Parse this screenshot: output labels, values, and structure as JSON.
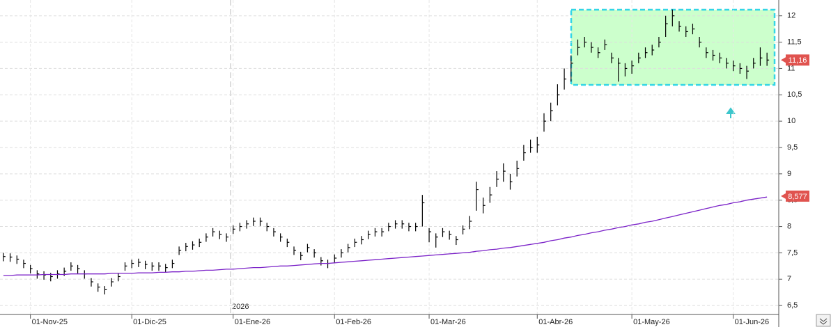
{
  "chart_data": {
    "type": "hlc",
    "year_label": "2026",
    "categories": [
      null,
      null,
      null,
      null,
      "01-Nov-25",
      null,
      null,
      null,
      null,
      null,
      null,
      null,
      null,
      null,
      null,
      null,
      null,
      null,
      null,
      "01-Dic-25",
      null,
      null,
      null,
      null,
      null,
      null,
      null,
      null,
      null,
      null,
      null,
      null,
      null,
      null,
      "01-Ene-26",
      null,
      null,
      null,
      null,
      null,
      null,
      null,
      null,
      null,
      null,
      null,
      null,
      null,
      null,
      "01-Feb-26",
      null,
      null,
      null,
      null,
      null,
      null,
      null,
      null,
      null,
      null,
      null,
      null,
      null,
      "01-Mar-26",
      null,
      null,
      null,
      null,
      null,
      null,
      null,
      null,
      null,
      null,
      null,
      null,
      null,
      null,
      null,
      "01-Abr-26",
      null,
      null,
      null,
      null,
      null,
      null,
      null,
      null,
      null,
      null,
      null,
      null,
      null,
      "01-May-26",
      null,
      null,
      null,
      null,
      null,
      null,
      null,
      null,
      null,
      null,
      null,
      null,
      null,
      null,
      "01-Jun-26",
      null,
      null,
      null,
      null,
      null
    ],
    "high": [
      7.5,
      7.49,
      7.45,
      7.37,
      7.27,
      7.17,
      7.15,
      7.12,
      7.17,
      7.22,
      7.32,
      7.27,
      7.17,
      7.02,
      6.92,
      6.87,
      7.02,
      7.12,
      7.32,
      7.37,
      7.39,
      7.35,
      7.32,
      7.32,
      7.29,
      7.37,
      7.62,
      7.69,
      7.72,
      7.77,
      7.87,
      7.97,
      7.92,
      7.87,
      8.02,
      8.07,
      8.12,
      8.17,
      8.17,
      8.07,
      7.97,
      7.87,
      7.77,
      7.62,
      7.52,
      7.67,
      7.57,
      7.42,
      7.37,
      7.47,
      7.57,
      7.67,
      7.77,
      7.82,
      7.92,
      7.97,
      7.97,
      8.07,
      8.12,
      8.12,
      8.07,
      8.07,
      8.6,
      7.97,
      7.87,
      7.97,
      7.92,
      7.82,
      8.02,
      8.2,
      8.85,
      8.55,
      8.75,
      9.05,
      9.2,
      9.0,
      9.25,
      9.55,
      9.65,
      9.7,
      10.15,
      10.35,
      10.7,
      11.0,
      11.25,
      11.55,
      11.6,
      11.5,
      11.4,
      11.55,
      11.3,
      11.2,
      11.1,
      11.15,
      11.3,
      11.4,
      11.45,
      11.6,
      12.0,
      12.12,
      11.9,
      11.8,
      11.85,
      11.6,
      11.4,
      11.35,
      11.3,
      11.2,
      11.15,
      11.1,
      11.05,
      11.2,
      11.4,
      11.3
    ],
    "low": [
      7.34,
      7.33,
      7.29,
      7.21,
      7.11,
      7.01,
      6.99,
      6.96,
      7.01,
      7.06,
      7.16,
      7.11,
      7.01,
      6.86,
      6.76,
      6.71,
      6.86,
      6.96,
      7.16,
      7.21,
      7.23,
      7.19,
      7.16,
      7.16,
      7.13,
      7.21,
      7.46,
      7.53,
      7.56,
      7.61,
      7.71,
      7.81,
      7.76,
      7.71,
      7.86,
      7.91,
      7.96,
      8.01,
      8.01,
      7.91,
      7.81,
      7.71,
      7.61,
      7.46,
      7.36,
      7.51,
      7.41,
      7.26,
      7.21,
      7.31,
      7.41,
      7.51,
      7.61,
      7.66,
      7.76,
      7.81,
      7.81,
      7.91,
      7.96,
      7.96,
      7.91,
      7.91,
      8.0,
      7.7,
      7.6,
      7.8,
      7.75,
      7.65,
      7.85,
      7.95,
      8.3,
      8.25,
      8.45,
      8.75,
      8.85,
      8.7,
      8.95,
      9.25,
      9.4,
      9.4,
      9.8,
      10.0,
      10.3,
      10.6,
      10.75,
      11.25,
      11.4,
      11.3,
      11.2,
      11.35,
      11.1,
      10.75,
      10.85,
      10.9,
      11.1,
      11.2,
      11.25,
      11.4,
      11.6,
      11.8,
      11.7,
      11.6,
      11.65,
      11.4,
      11.2,
      11.15,
      11.1,
      11.0,
      10.95,
      10.9,
      10.8,
      11.0,
      11.05,
      11.05
    ],
    "close": [
      7.43,
      7.42,
      7.38,
      7.3,
      7.2,
      7.1,
      7.08,
      7.05,
      7.1,
      7.15,
      7.25,
      7.2,
      7.1,
      6.95,
      6.85,
      6.8,
      6.95,
      7.05,
      7.25,
      7.3,
      7.32,
      7.28,
      7.25,
      7.25,
      7.22,
      7.3,
      7.55,
      7.62,
      7.65,
      7.7,
      7.8,
      7.9,
      7.85,
      7.8,
      7.95,
      8.0,
      8.05,
      8.1,
      8.1,
      8.0,
      7.9,
      7.8,
      7.7,
      7.55,
      7.45,
      7.6,
      7.5,
      7.35,
      7.3,
      7.4,
      7.5,
      7.6,
      7.7,
      7.75,
      7.85,
      7.9,
      7.9,
      8.0,
      8.05,
      8.05,
      8.0,
      8.0,
      8.45,
      7.9,
      7.8,
      7.9,
      7.85,
      7.75,
      7.95,
      8.1,
      8.7,
      8.4,
      8.6,
      8.9,
      9.05,
      8.85,
      9.1,
      9.4,
      9.5,
      9.55,
      10.0,
      10.2,
      10.5,
      10.8,
      11.1,
      11.4,
      11.5,
      11.4,
      11.3,
      11.45,
      11.2,
      11.1,
      11.0,
      11.05,
      11.2,
      11.3,
      11.35,
      11.5,
      11.85,
      12.0,
      11.8,
      11.7,
      11.75,
      11.5,
      11.3,
      11.25,
      11.2,
      11.1,
      11.05,
      11.0,
      10.95,
      11.1,
      11.2,
      11.16
    ],
    "color": "#000000",
    "moving_average": {
      "color": "#7b22c8",
      "values": [
        7.07,
        7.07,
        7.08,
        7.08,
        7.08,
        7.08,
        7.09,
        7.09,
        7.09,
        7.09,
        7.1,
        7.1,
        7.1,
        7.1,
        7.1,
        7.1,
        7.11,
        7.11,
        7.11,
        7.11,
        7.12,
        7.12,
        7.12,
        7.13,
        7.13,
        7.14,
        7.14,
        7.15,
        7.15,
        7.16,
        7.17,
        7.17,
        7.18,
        7.19,
        7.19,
        7.2,
        7.21,
        7.22,
        7.22,
        7.23,
        7.24,
        7.25,
        7.25,
        7.26,
        7.27,
        7.28,
        7.29,
        7.3,
        7.3,
        7.31,
        7.32,
        7.33,
        7.34,
        7.35,
        7.36,
        7.37,
        7.38,
        7.39,
        7.4,
        7.41,
        7.42,
        7.43,
        7.44,
        7.45,
        7.46,
        7.47,
        7.48,
        7.49,
        7.5,
        7.51,
        7.53,
        7.54,
        7.56,
        7.57,
        7.59,
        7.6,
        7.62,
        7.64,
        7.66,
        7.68,
        7.7,
        7.73,
        7.75,
        7.78,
        7.8,
        7.83,
        7.85,
        7.88,
        7.9,
        7.93,
        7.95,
        7.98,
        8.0,
        8.03,
        8.05,
        8.08,
        8.1,
        8.13,
        8.16,
        8.19,
        8.22,
        8.25,
        8.28,
        8.31,
        8.34,
        8.37,
        8.4,
        8.42,
        8.45,
        8.47,
        8.5,
        8.52,
        8.54,
        8.56
      ]
    },
    "price_labels": [
      {
        "value": 11.16,
        "label": "11,16",
        "color": "#e0534f"
      },
      {
        "value": 8.577,
        "label": "8,577",
        "color": "#e0534f"
      }
    ],
    "ylim": [
      6.33,
      12.3
    ],
    "yticks": [
      {
        "value": 6.5,
        "label": "6,5"
      },
      7,
      {
        "value": 7.5,
        "label": "7,5"
      },
      8,
      {
        "value": 8.5,
        "label": "8,5"
      },
      9,
      {
        "value": 9.5,
        "label": "9,5"
      },
      10,
      {
        "value": 10.5,
        "label": "10,5"
      },
      11,
      {
        "value": 11.5,
        "label": "11,5"
      },
      12
    ],
    "grid": true
  }
}
